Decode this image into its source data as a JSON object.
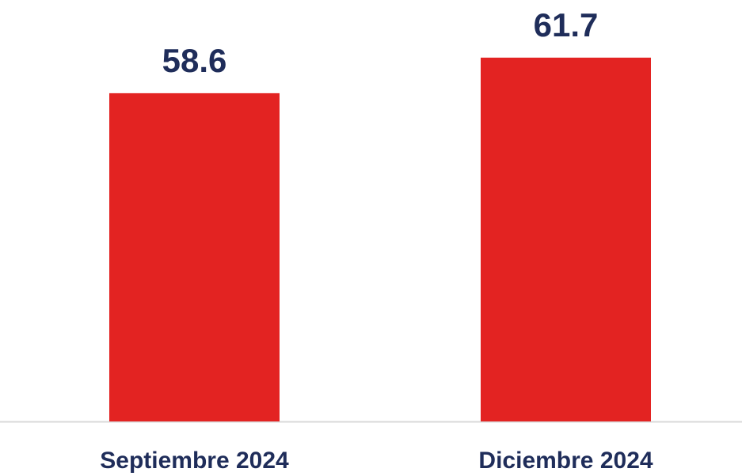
{
  "chart_data": {
    "type": "bar",
    "categories": [
      "Septiembre 2024",
      "Diciembre 2024"
    ],
    "values": [
      58.6,
      61.7
    ],
    "color": "#e32322",
    "ylim": [
      30,
      65
    ]
  }
}
